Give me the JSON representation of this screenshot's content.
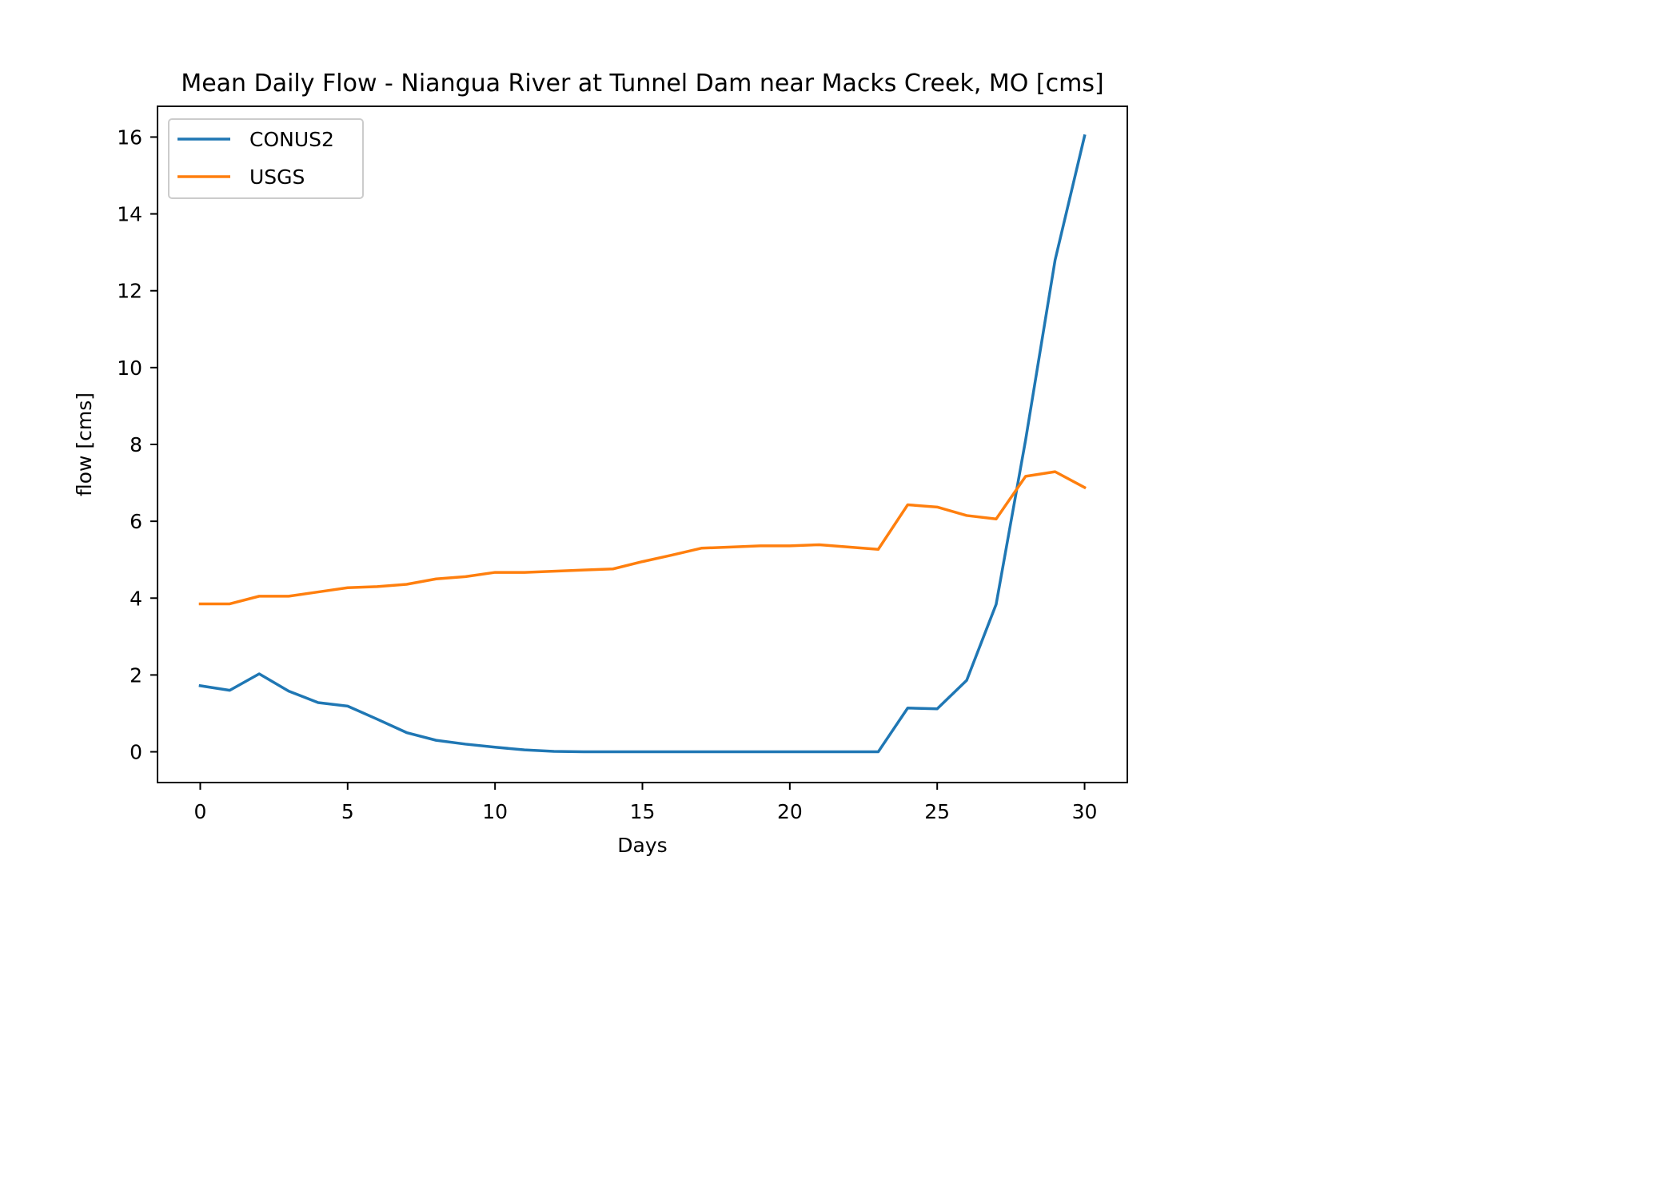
{
  "chart_data": {
    "type": "line",
    "title": "Mean Daily Flow - Niangua River at Tunnel Dam near Macks Creek, MO [cms]",
    "xlabel": "Days",
    "ylabel": "flow [cms]",
    "xlim": [
      -1.45,
      31.45
    ],
    "ylim": [
      -0.8,
      16.8
    ],
    "xticks": [
      0,
      5,
      10,
      15,
      20,
      25,
      30
    ],
    "yticks": [
      0,
      2,
      4,
      6,
      8,
      10,
      12,
      14,
      16
    ],
    "grid": false,
    "legend_position": "upper-left",
    "x": [
      0,
      1,
      2,
      3,
      4,
      5,
      6,
      7,
      8,
      9,
      10,
      11,
      12,
      13,
      14,
      15,
      16,
      17,
      18,
      19,
      20,
      21,
      22,
      23,
      24,
      25,
      26,
      27,
      28,
      29,
      30
    ],
    "series": [
      {
        "name": "CONUS2",
        "color": "#1f77b4",
        "values": [
          1.72,
          1.6,
          2.03,
          1.58,
          1.28,
          1.19,
          0.85,
          0.5,
          0.3,
          0.2,
          0.12,
          0.05,
          0.01,
          0.0,
          0.0,
          0.0,
          0.0,
          0.0,
          0.0,
          0.0,
          0.0,
          0.0,
          0.0,
          0.0,
          1.14,
          1.12,
          1.86,
          3.84,
          8.12,
          12.8,
          16.03
        ]
      },
      {
        "name": "USGS",
        "color": "#ff7f0e",
        "values": [
          3.85,
          3.85,
          4.05,
          4.05,
          4.16,
          4.27,
          4.3,
          4.36,
          4.5,
          4.56,
          4.67,
          4.67,
          4.7,
          4.73,
          4.76,
          4.95,
          5.12,
          5.3,
          5.33,
          5.36,
          5.36,
          5.39,
          5.33,
          5.27,
          6.43,
          6.37,
          6.15,
          6.06,
          7.17,
          7.29,
          6.88
        ]
      }
    ]
  }
}
